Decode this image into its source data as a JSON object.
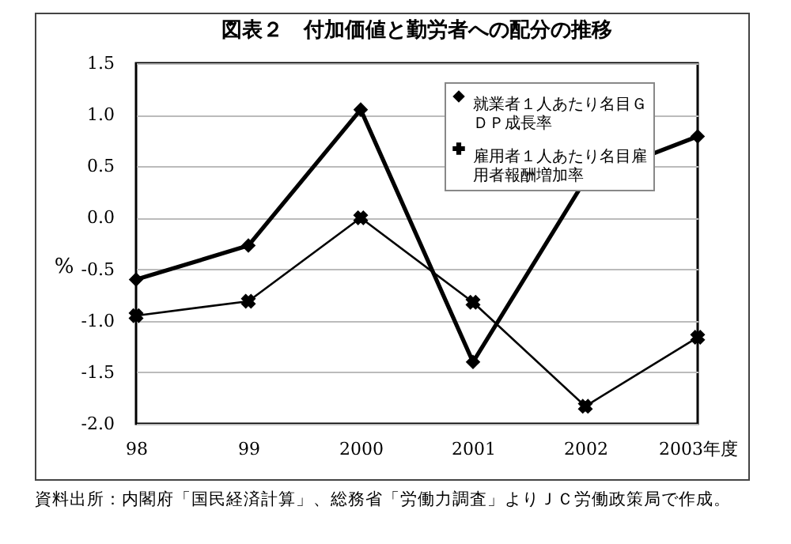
{
  "chart_data": {
    "type": "line",
    "title": "図表２　付加価値と勤労者への配分の推移",
    "ylabel": "%",
    "categories": [
      "98",
      "99",
      "2000",
      "2001",
      "2002",
      "2003年度"
    ],
    "series": [
      {
        "name": "就業者１人あたり名目ＧＤＰ成長率",
        "color": "#000000",
        "marker": "diamond",
        "values": [
          -0.6,
          -0.27,
          1.05,
          -1.4,
          0.37,
          0.79
        ]
      },
      {
        "name": "雇用者１人あたり名目雇用者報酬増加率",
        "color": "#000000",
        "marker": "cross",
        "values": [
          -0.95,
          -0.81,
          0.0,
          -0.82,
          -1.83,
          -1.16
        ]
      }
    ],
    "ylim": [
      -2,
      1.5
    ],
    "yticks": [
      {
        "value": -2,
        "label": "-2.0"
      },
      {
        "value": -1.5,
        "label": "-1.5"
      },
      {
        "value": -1,
        "label": "-1.0"
      },
      {
        "value": -0.5,
        "label": "-0.5"
      },
      {
        "value": 0,
        "label": "0.0"
      },
      {
        "value": 0.5,
        "label": "0.5"
      },
      {
        "value": 1,
        "label": "1.0"
      },
      {
        "value": 1.5,
        "label": "1.5"
      }
    ],
    "grid": "y",
    "legend": "top right",
    "line_style": "solid",
    "annotations": [
      "資料出所：内閣府「国民経済計算」、総務省「労働力調査」よりＪＣ労働政策局で作成。"
    ]
  }
}
